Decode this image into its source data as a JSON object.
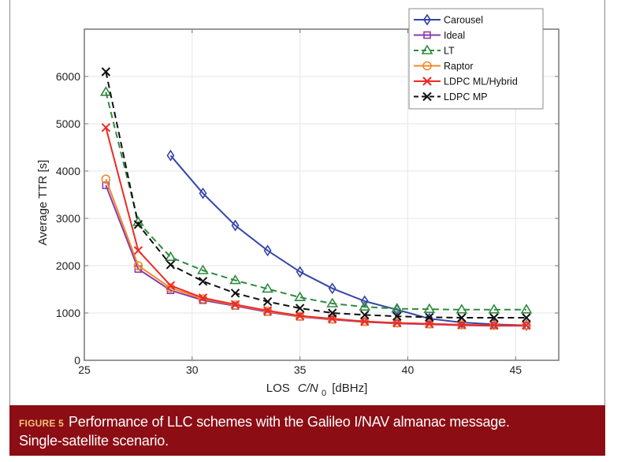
{
  "figure": {
    "label": "FIGURE 5",
    "caption_line1": "Performance of LLC schemes with the Galileo I/NAV almanac message.",
    "caption_line2": "Single-satellite scenario.",
    "caption_bg": "#8c0d14"
  },
  "chart_data": {
    "type": "line",
    "title": "",
    "xlabel_prefix": "LOS",
    "xlabel_var": "C/N",
    "xlabel_sub": "0",
    "xlabel_unit": "[dBHz]",
    "ylabel": "Average TTR [s]",
    "xlim": [
      25,
      47
    ],
    "ylim": [
      0,
      7000
    ],
    "xticks": [
      25,
      30,
      35,
      40,
      45
    ],
    "yticks": [
      0,
      1000,
      2000,
      3000,
      4000,
      5000,
      6000
    ],
    "grid": true,
    "legend_position": "top-right",
    "x": [
      26,
      27.5,
      29,
      30.5,
      32,
      33.5,
      35,
      36.5,
      38,
      39.5,
      41,
      42.5,
      44,
      45.5
    ],
    "series": [
      {
        "name": "Carousel",
        "color": "#3545a8",
        "marker": "diamond",
        "dash": "solid",
        "values": [
          null,
          null,
          4330,
          3530,
          2850,
          2320,
          1870,
          1520,
          1250,
          1070,
          880,
          800,
          760,
          740
        ]
      },
      {
        "name": "Ideal",
        "color": "#8b3aa8",
        "marker": "square",
        "dash": "solid",
        "values": [
          3700,
          1930,
          1480,
          1270,
          1150,
          1020,
          920,
          860,
          810,
          780,
          760,
          740,
          730,
          730
        ]
      },
      {
        "name": "LT",
        "color": "#2e8b3e",
        "marker": "triangle",
        "dash": "dashed",
        "values": [
          5670,
          2920,
          2180,
          1900,
          1690,
          1510,
          1330,
          1200,
          1130,
          1090,
          1080,
          1070,
          1070,
          1070
        ]
      },
      {
        "name": "Raptor",
        "color": "#f08a2a",
        "marker": "circle",
        "dash": "solid",
        "values": [
          3830,
          2000,
          1530,
          1300,
          1170,
          1040,
          930,
          870,
          820,
          790,
          770,
          750,
          740,
          740
        ]
      },
      {
        "name": "LDPC ML/Hybrid",
        "color": "#ee2a24",
        "marker": "x",
        "dash": "solid",
        "values": [
          4920,
          2320,
          1580,
          1320,
          1180,
          1050,
          940,
          880,
          820,
          790,
          770,
          750,
          740,
          740
        ]
      },
      {
        "name": "LDPC MP",
        "color": "#111111",
        "marker": "x",
        "dash": "dashed",
        "values": [
          6100,
          2870,
          2020,
          1670,
          1420,
          1240,
          1100,
          1000,
          960,
          930,
          910,
          900,
          900,
          900
        ]
      }
    ]
  }
}
